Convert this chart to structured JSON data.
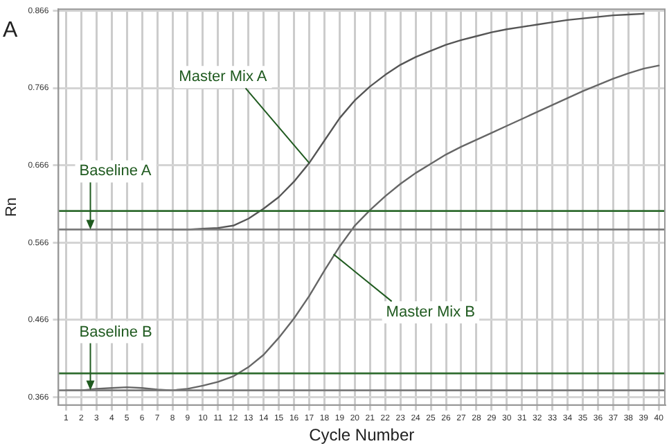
{
  "chart_data": {
    "type": "line",
    "xlabel": "Cycle Number",
    "ylabel": "Rn",
    "x": [
      1,
      2,
      3,
      4,
      5,
      6,
      7,
      8,
      9,
      10,
      11,
      12,
      13,
      14,
      15,
      16,
      17,
      18,
      19,
      20,
      21,
      22,
      23,
      24,
      25,
      26,
      27,
      28,
      29,
      30,
      31,
      32,
      33,
      34,
      35,
      36,
      37,
      38,
      39,
      40
    ],
    "series": [
      {
        "color": "#555555",
        "values": [
          null,
          null,
          null,
          null,
          null,
          null,
          null,
          0.583,
          0.583,
          0.584,
          0.585,
          0.588,
          0.597,
          0.61,
          0.625,
          0.645,
          0.669,
          0.698,
          0.727,
          0.75,
          0.768,
          0.783,
          0.796,
          0.806,
          0.814,
          0.822,
          0.828,
          0.833,
          0.838,
          0.842,
          0.845,
          0.848,
          0.851,
          0.854,
          0.856,
          0.858,
          0.86,
          0.861,
          0.862,
          null
        ]
      },
      {
        "color": "#666666",
        "values": [
          0.375,
          0.375,
          0.377,
          0.378,
          0.379,
          0.378,
          0.376,
          0.375,
          0.377,
          0.381,
          0.386,
          0.393,
          0.405,
          0.421,
          0.443,
          0.468,
          0.497,
          0.53,
          0.561,
          0.588,
          0.608,
          0.626,
          0.642,
          0.656,
          0.668,
          0.68,
          0.69,
          0.699,
          0.708,
          0.717,
          0.726,
          0.735,
          0.744,
          0.753,
          0.762,
          0.77,
          0.778,
          0.785,
          0.791,
          0.795
        ]
      }
    ],
    "xlim": [
      0.5,
      40.4
    ],
    "xticks": [
      1,
      2,
      3,
      4,
      5,
      6,
      7,
      8,
      9,
      10,
      11,
      12,
      13,
      14,
      15,
      16,
      17,
      18,
      19,
      20,
      21,
      22,
      23,
      24,
      25,
      26,
      27,
      28,
      29,
      30,
      31,
      32,
      33,
      34,
      35,
      36,
      37,
      38,
      39,
      40
    ],
    "ylim": [
      0.356,
      0.868
    ],
    "yticks": [
      0.366,
      0.466,
      0.566,
      0.666,
      0.766,
      0.866
    ],
    "grid": true,
    "legend": false,
    "marker": "none",
    "line_style": "solid",
    "ref_lines": [
      {
        "axis": "y",
        "value": 0.607,
        "color": "#2e6b2e"
      },
      {
        "axis": "y",
        "value": 0.583,
        "color": "#7a7a7a"
      },
      {
        "axis": "y",
        "value": 0.397,
        "color": "#2e6b2e"
      },
      {
        "axis": "y",
        "value": 0.375,
        "color": "#7a7a7a"
      }
    ],
    "annotations": [
      "A",
      {
        "text": "Master Mix A",
        "x": 17,
        "y": 0.669
      },
      {
        "text": "Master Mix B",
        "x": 18.6,
        "y": 0.551
      },
      {
        "text": "Baseline A",
        "x": 2.6,
        "y": 0.583
      },
      {
        "text": "Baseline B",
        "x": 2.6,
        "y": 0.375
      }
    ]
  }
}
